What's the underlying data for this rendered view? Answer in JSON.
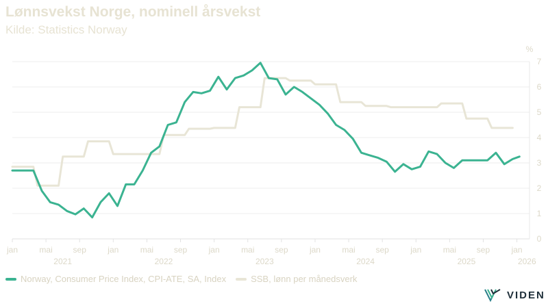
{
  "header": {
    "title": "Lønnsvekst Norge, nominell årsvekst",
    "subtitle": "Kilde: Statistics Norway"
  },
  "legend": {
    "series1": "Norway, Consumer Price Index, CPI-ATE, SA, Index",
    "series2": "SSB, lønn per månedsverk"
  },
  "logo": {
    "text": "VIDEN"
  },
  "colors": {
    "series1": "#3bb391",
    "series2": "#e8e5d6",
    "grid": "#eeeeee",
    "text": "#dcd8c8",
    "logo": "#1f2f3a"
  },
  "chart_data": {
    "type": "line",
    "title": "Lønnsvekst Norge, nominell årsvekst",
    "subtitle": "Kilde: Statistics Norway",
    "y_unit_label": "%",
    "ylim": [
      0,
      7
    ],
    "y_ticks": [
      "0",
      "1",
      "2",
      "3",
      "4",
      "5",
      "6",
      "7"
    ],
    "x_range": [
      "2021-01",
      "2026-02"
    ],
    "month_ticks": [
      {
        "m": 0,
        "label": "jan"
      },
      {
        "m": 4,
        "label": "mai"
      },
      {
        "m": 8,
        "label": "sep"
      },
      {
        "m": 12,
        "label": "jan"
      },
      {
        "m": 16,
        "label": "mai"
      },
      {
        "m": 20,
        "label": "sep"
      },
      {
        "m": 24,
        "label": "jan"
      },
      {
        "m": 28,
        "label": "mai"
      },
      {
        "m": 32,
        "label": "sep"
      },
      {
        "m": 36,
        "label": "jan"
      },
      {
        "m": 40,
        "label": "mai"
      },
      {
        "m": 44,
        "label": "sep"
      },
      {
        "m": 48,
        "label": "jan"
      },
      {
        "m": 52,
        "label": "mai"
      },
      {
        "m": 56,
        "label": "sep"
      },
      {
        "m": 60,
        "label": "jan"
      }
    ],
    "year_labels": [
      {
        "m": 6,
        "label": "2021"
      },
      {
        "m": 18,
        "label": "2022"
      },
      {
        "m": 30,
        "label": "2023"
      },
      {
        "m": 42,
        "label": "2024"
      },
      {
        "m": 54,
        "label": "2025"
      },
      {
        "m": 61.2,
        "label": "2026"
      }
    ],
    "series": [
      {
        "name": "Norway, Consumer Price Index, CPI-ATE, SA, Index",
        "step": false,
        "points": [
          [
            0,
            2.7
          ],
          [
            2.5,
            2.7
          ],
          [
            3.5,
            1.9
          ],
          [
            4.5,
            1.45
          ],
          [
            5.5,
            1.35
          ],
          [
            6.5,
            1.1
          ],
          [
            7.5,
            0.97
          ],
          [
            8.5,
            1.2
          ],
          [
            9.5,
            0.85
          ],
          [
            10.5,
            1.45
          ],
          [
            11.5,
            1.8
          ],
          [
            12.5,
            1.3
          ],
          [
            13.5,
            2.15
          ],
          [
            14.5,
            2.15
          ],
          [
            15.5,
            2.7
          ],
          [
            16.5,
            3.4
          ],
          [
            17.5,
            3.65
          ],
          [
            18.5,
            4.5
          ],
          [
            19.5,
            4.6
          ],
          [
            20.5,
            5.4
          ],
          [
            21.5,
            5.8
          ],
          [
            22.5,
            5.75
          ],
          [
            23.5,
            5.85
          ],
          [
            24.5,
            6.4
          ],
          [
            25.5,
            5.9
          ],
          [
            26.5,
            6.35
          ],
          [
            27.5,
            6.45
          ],
          [
            28.5,
            6.65
          ],
          [
            29.5,
            6.95
          ],
          [
            30.5,
            6.35
          ],
          [
            31.5,
            6.3
          ],
          [
            32.5,
            5.7
          ],
          [
            33.5,
            6.0
          ],
          [
            34.5,
            5.8
          ],
          [
            35.5,
            5.55
          ],
          [
            36.5,
            5.3
          ],
          [
            37.5,
            4.95
          ],
          [
            38.5,
            4.5
          ],
          [
            39.5,
            4.3
          ],
          [
            40.5,
            3.95
          ],
          [
            41.5,
            3.4
          ],
          [
            42.5,
            3.3
          ],
          [
            43.5,
            3.2
          ],
          [
            44.5,
            3.05
          ],
          [
            45.5,
            2.65
          ],
          [
            46.5,
            2.95
          ],
          [
            47.5,
            2.75
          ],
          [
            48.5,
            2.85
          ],
          [
            49.5,
            3.45
          ],
          [
            50.5,
            3.35
          ],
          [
            51.5,
            3.0
          ],
          [
            52.5,
            2.8
          ],
          [
            53.5,
            3.1
          ],
          [
            54.5,
            3.1
          ],
          [
            55.5,
            3.1
          ],
          [
            56.5,
            3.1
          ],
          [
            57.5,
            3.4
          ],
          [
            58.5,
            2.95
          ],
          [
            59.5,
            3.15
          ],
          [
            60.3,
            3.25
          ]
        ]
      },
      {
        "name": "SSB, lønn per månedsverk",
        "step": true,
        "points": [
          [
            0,
            2.85
          ],
          [
            2.5,
            2.85
          ],
          [
            3,
            2.1
          ],
          [
            5.5,
            2.1
          ],
          [
            6,
            3.25
          ],
          [
            8.5,
            3.25
          ],
          [
            9,
            3.85
          ],
          [
            11.5,
            3.85
          ],
          [
            12,
            3.35
          ],
          [
            17.5,
            3.35
          ],
          [
            18,
            4.1
          ],
          [
            20.5,
            4.1
          ],
          [
            21,
            4.35
          ],
          [
            23.5,
            4.35
          ],
          [
            24,
            4.38
          ],
          [
            26.5,
            4.38
          ],
          [
            27,
            5.2
          ],
          [
            29.5,
            5.2
          ],
          [
            30,
            6.35
          ],
          [
            32.5,
            6.35
          ],
          [
            33,
            6.25
          ],
          [
            35.5,
            6.25
          ],
          [
            36,
            6.1
          ],
          [
            38.5,
            6.1
          ],
          [
            39,
            5.4
          ],
          [
            41.5,
            5.4
          ],
          [
            42,
            5.25
          ],
          [
            44.5,
            5.25
          ],
          [
            45,
            5.2
          ],
          [
            50.5,
            5.2
          ],
          [
            51,
            5.35
          ],
          [
            53.5,
            5.35
          ],
          [
            54,
            4.75
          ],
          [
            56.5,
            4.75
          ],
          [
            57,
            4.38
          ],
          [
            59.5,
            4.38
          ]
        ]
      }
    ]
  }
}
